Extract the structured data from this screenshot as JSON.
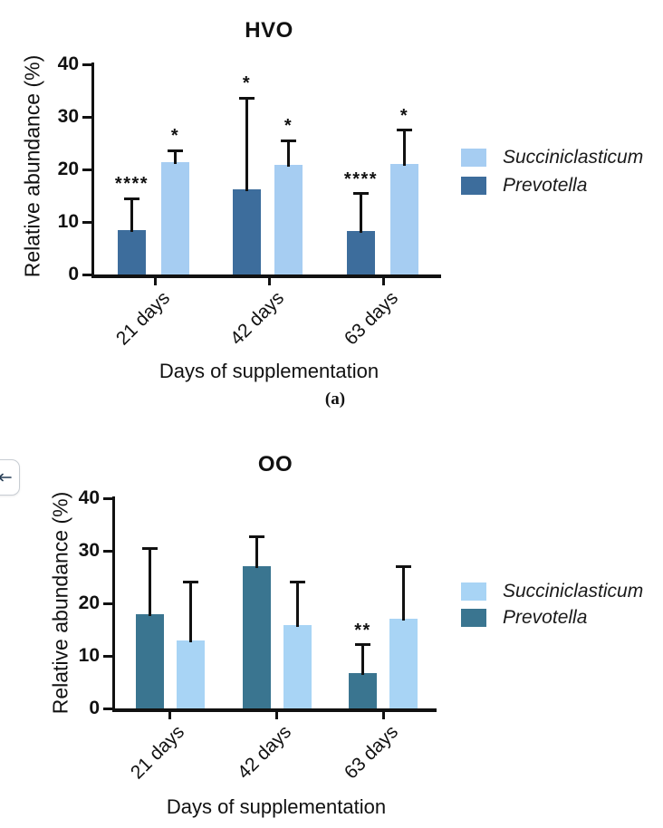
{
  "chart_data": [
    {
      "type": "bar",
      "title": "HVO",
      "panel_label": "(a)",
      "ylabel": "Relative abundance (%)",
      "xlabel": "Days of supplementation",
      "ylim": [
        0,
        40
      ],
      "yticks": [
        0,
        10,
        20,
        30,
        40
      ],
      "categories": [
        "21 days",
        "42 days",
        "63 days"
      ],
      "legend_position": "right",
      "legend_order": [
        "Succiniclasticum",
        "Prevotella"
      ],
      "series": [
        {
          "name": "Prevotella",
          "color": "#3D6D9C",
          "values": [
            8.5,
            16.2,
            8.3
          ],
          "errors_up": [
            5.9,
            17.4,
            7.1
          ],
          "stars": [
            "****",
            "*",
            "****"
          ]
        },
        {
          "name": "Succiniclasticum",
          "color": "#A6CDF2",
          "values": [
            21.3,
            20.8,
            21.0
          ],
          "errors_up": [
            2.3,
            4.7,
            6.5
          ],
          "stars": [
            "*",
            "*",
            "*"
          ]
        }
      ]
    },
    {
      "type": "bar",
      "title": "OO",
      "panel_label": "",
      "ylabel": "Relative abundance (%)",
      "xlabel": "Days of supplementation",
      "ylim": [
        0,
        40
      ],
      "yticks": [
        0,
        10,
        20,
        30,
        40
      ],
      "categories": [
        "21 days",
        "42 days",
        "63 days"
      ],
      "legend_position": "right",
      "legend_order": [
        "Succiniclasticum",
        "Prevotella"
      ],
      "series": [
        {
          "name": "Prevotella",
          "color": "#3A7590",
          "values": [
            17.9,
            27.1,
            6.8
          ],
          "errors_up": [
            12.5,
            5.5,
            5.3
          ],
          "stars": [
            "",
            "",
            "**"
          ]
        },
        {
          "name": "Succiniclasticum",
          "color": "#A8D4F5",
          "values": [
            12.9,
            15.9,
            17.1
          ],
          "errors_up": [
            11.1,
            8.2,
            9.8
          ],
          "stars": [
            "",
            "",
            ""
          ]
        }
      ]
    }
  ],
  "ui": {
    "floating_button": {
      "icon": "left-arrow-icon"
    }
  },
  "colors": {
    "axis": "#111111",
    "background": "#ffffff",
    "hvo_prevotella": "#3D6D9C",
    "hvo_succiniclasticum": "#A6CDF2",
    "oo_prevotella": "#3A7590",
    "oo_succiniclasticum": "#A8D4F5"
  }
}
